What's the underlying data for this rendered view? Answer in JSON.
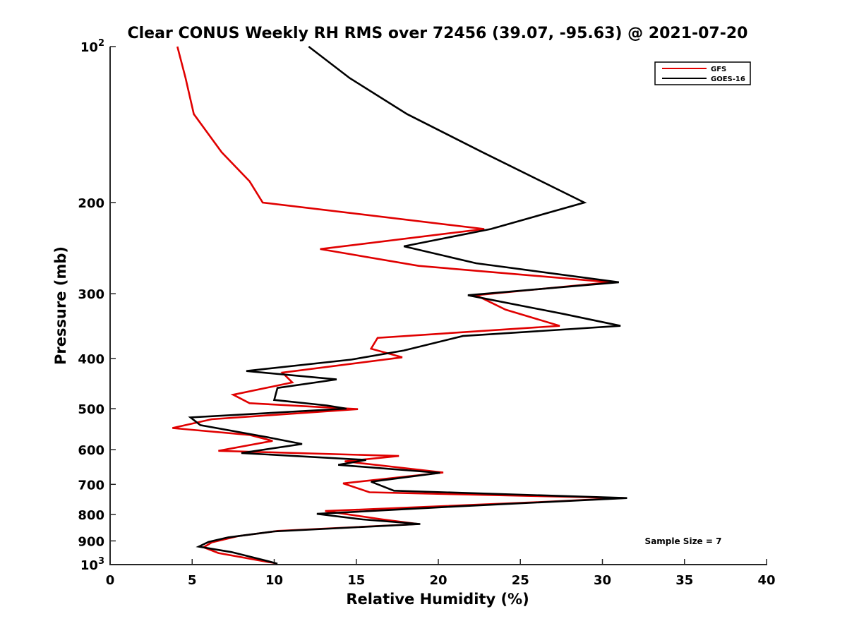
{
  "chart_data": {
    "type": "line",
    "title": "Clear CONUS Weekly RH RMS over 72456 (39.07, -95.63) @ 2021-07-20",
    "xlabel": "Relative Humidity (%)",
    "ylabel": "Pressure (mb)",
    "xlim": [
      0,
      40
    ],
    "ylim": [
      100,
      1000
    ],
    "yscale": "log",
    "y_reversed": true,
    "xticks": [
      "0",
      "5",
      "10",
      "15",
      "20",
      "25",
      "30",
      "35",
      "40"
    ],
    "xtick_values": [
      0,
      5,
      10,
      15,
      20,
      25,
      30,
      35,
      40
    ],
    "yticks": [
      {
        "value": 100,
        "base": "10",
        "exp": "2"
      },
      {
        "value": 200,
        "label": "200"
      },
      {
        "value": 300,
        "label": "300"
      },
      {
        "value": 400,
        "label": "400"
      },
      {
        "value": 500,
        "label": "500"
      },
      {
        "value": 600,
        "label": "600"
      },
      {
        "value": 700,
        "label": "700"
      },
      {
        "value": 800,
        "label": "800"
      },
      {
        "value": 900,
        "label": "900"
      },
      {
        "value": 1000,
        "base": "10",
        "exp": "3"
      }
    ],
    "legend_position": "top-right",
    "annotation": "Sample Size = 7",
    "series": [
      {
        "name": "GFS",
        "color": "#e00000",
        "points": [
          [
            4.1,
            100
          ],
          [
            4.6,
            115
          ],
          [
            5.1,
            135
          ],
          [
            6.8,
            160
          ],
          [
            8.5,
            182
          ],
          [
            9.3,
            200
          ],
          [
            22.8,
            225
          ],
          [
            12.8,
            246
          ],
          [
            18.8,
            265
          ],
          [
            30.5,
            285
          ],
          [
            22.3,
            302
          ],
          [
            24.1,
            322
          ],
          [
            27.4,
            346
          ],
          [
            16.3,
            365
          ],
          [
            15.9,
            383
          ],
          [
            17.8,
            398
          ],
          [
            10.5,
            426
          ],
          [
            11.1,
            445
          ],
          [
            7.5,
            470
          ],
          [
            8.5,
            488
          ],
          [
            15.1,
            501
          ],
          [
            6.2,
            524
          ],
          [
            3.8,
            545
          ],
          [
            8.5,
            562
          ],
          [
            9.9,
            577
          ],
          [
            6.6,
            603
          ],
          [
            17.6,
            617
          ],
          [
            14.3,
            632
          ],
          [
            20.3,
            664
          ],
          [
            14.2,
            697
          ],
          [
            15.8,
            725
          ],
          [
            31.3,
            744
          ],
          [
            25.9,
            758
          ],
          [
            13.1,
            788
          ],
          [
            16.6,
            818
          ],
          [
            18.8,
            835
          ],
          [
            10.2,
            861
          ],
          [
            7.8,
            881
          ],
          [
            6.2,
            906
          ],
          [
            5.7,
            926
          ],
          [
            6.6,
            950
          ],
          [
            9.6,
            988
          ],
          [
            10.1,
            994
          ]
        ]
      },
      {
        "name": "GOES-16",
        "color": "#000000",
        "points": [
          [
            12.1,
            100
          ],
          [
            14.6,
            115
          ],
          [
            18.1,
            135
          ],
          [
            22.7,
            160
          ],
          [
            28.9,
            200
          ],
          [
            23.2,
            225
          ],
          [
            17.9,
            243
          ],
          [
            22.3,
            262
          ],
          [
            31.0,
            285
          ],
          [
            21.8,
            302
          ],
          [
            27.6,
            328
          ],
          [
            31.1,
            346
          ],
          [
            21.5,
            362
          ],
          [
            17.9,
            386
          ],
          [
            14.7,
            402
          ],
          [
            8.3,
            423
          ],
          [
            13.8,
            439
          ],
          [
            10.2,
            456
          ],
          [
            10.0,
            481
          ],
          [
            13.2,
            493
          ],
          [
            14.4,
            500
          ],
          [
            4.9,
            520
          ],
          [
            5.5,
            538
          ],
          [
            9.5,
            567
          ],
          [
            11.7,
            585
          ],
          [
            8.0,
            609
          ],
          [
            15.6,
            628
          ],
          [
            13.9,
            642
          ],
          [
            20.1,
            665
          ],
          [
            15.9,
            692
          ],
          [
            17.3,
            720
          ],
          [
            31.5,
            744
          ],
          [
            20.5,
            774
          ],
          [
            12.6,
            798
          ],
          [
            15.4,
            818
          ],
          [
            18.9,
            835
          ],
          [
            10.0,
            863
          ],
          [
            7.2,
            886
          ],
          [
            6.0,
            904
          ],
          [
            5.4,
            923
          ],
          [
            7.4,
            946
          ],
          [
            9.3,
            979
          ],
          [
            10.2,
            996
          ]
        ]
      }
    ]
  }
}
